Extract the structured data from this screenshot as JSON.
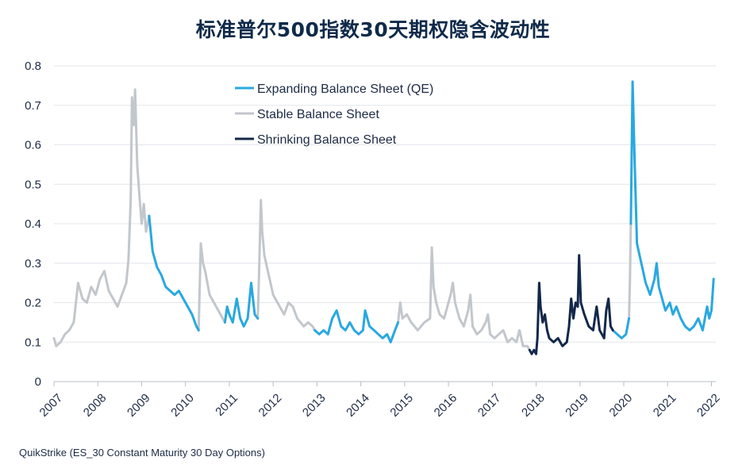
{
  "chart_data": {
    "type": "line",
    "title": "标准普尔500指数30天期权隐含波动性",
    "source": "QuikStrike (ES_30 Constant Maturity 30 Day Options)",
    "xlabel": "",
    "ylabel": "",
    "xlim": [
      2007.0,
      2022.1
    ],
    "ylim": [
      0,
      0.8
    ],
    "y_ticks": [
      0,
      0.1,
      0.2,
      0.3,
      0.4,
      0.5,
      0.6,
      0.7,
      0.8
    ],
    "y_tick_labels": [
      "0",
      "0.1",
      "0.2",
      "0.3",
      "0.4",
      "0.5",
      "0.6",
      "0.7",
      "0.8"
    ],
    "x_ticks": [
      2007,
      2008,
      2009,
      2010,
      2011,
      2012,
      2013,
      2014,
      2015,
      2016,
      2017,
      2018,
      2019,
      2020,
      2021,
      2022
    ],
    "x_tick_labels": [
      "2007",
      "2008",
      "2009",
      "2010",
      "2011",
      "2012",
      "2013",
      "2014",
      "2015",
      "2016",
      "2017",
      "2018",
      "2019",
      "2020",
      "2021",
      "2022"
    ],
    "grid": "horizontal",
    "legend_position": "top-center",
    "series": [
      {
        "name": "Expanding Balance Sheet (QE)",
        "color": "#29a8e0",
        "segments": [
          [
            [
              2009.17,
              0.42
            ],
            [
              2009.25,
              0.33
            ],
            [
              2009.35,
              0.29
            ],
            [
              2009.45,
              0.27
            ],
            [
              2009.55,
              0.24
            ],
            [
              2009.65,
              0.23
            ],
            [
              2009.75,
              0.22
            ],
            [
              2009.85,
              0.23
            ],
            [
              2009.95,
              0.21
            ],
            [
              2010.05,
              0.19
            ],
            [
              2010.15,
              0.17
            ],
            [
              2010.25,
              0.14
            ],
            [
              2010.3,
              0.13
            ]
          ],
          [
            [
              2010.9,
              0.15
            ],
            [
              2010.95,
              0.19
            ],
            [
              2011.0,
              0.17
            ],
            [
              2011.08,
              0.15
            ],
            [
              2011.17,
              0.21
            ],
            [
              2011.25,
              0.16
            ],
            [
              2011.33,
              0.14
            ],
            [
              2011.42,
              0.16
            ],
            [
              2011.5,
              0.25
            ],
            [
              2011.58,
              0.17
            ],
            [
              2011.65,
              0.16
            ]
          ],
          [
            [
              2012.95,
              0.13
            ],
            [
              2013.05,
              0.12
            ],
            [
              2013.15,
              0.13
            ],
            [
              2013.25,
              0.12
            ],
            [
              2013.35,
              0.16
            ],
            [
              2013.45,
              0.18
            ],
            [
              2013.55,
              0.14
            ],
            [
              2013.65,
              0.13
            ],
            [
              2013.75,
              0.15
            ],
            [
              2013.85,
              0.13
            ],
            [
              2013.95,
              0.12
            ],
            [
              2014.05,
              0.13
            ],
            [
              2014.1,
              0.18
            ],
            [
              2014.2,
              0.14
            ],
            [
              2014.3,
              0.13
            ],
            [
              2014.4,
              0.12
            ],
            [
              2014.5,
              0.11
            ],
            [
              2014.6,
              0.12
            ],
            [
              2014.68,
              0.1
            ],
            [
              2014.78,
              0.13
            ],
            [
              2014.85,
              0.15
            ]
          ],
          [
            [
              2019.75,
              0.13
            ],
            [
              2019.85,
              0.12
            ],
            [
              2019.95,
              0.11
            ],
            [
              2020.05,
              0.12
            ],
            [
              2020.12,
              0.16
            ]
          ],
          [
            [
              2020.16,
              0.4
            ],
            [
              2020.2,
              0.76
            ],
            [
              2020.25,
              0.55
            ],
            [
              2020.3,
              0.35
            ],
            [
              2020.4,
              0.3
            ],
            [
              2020.5,
              0.25
            ],
            [
              2020.6,
              0.22
            ],
            [
              2020.7,
              0.26
            ],
            [
              2020.75,
              0.3
            ],
            [
              2020.8,
              0.24
            ],
            [
              2020.85,
              0.22
            ],
            [
              2020.9,
              0.2
            ],
            [
              2020.95,
              0.18
            ],
            [
              2021.05,
              0.2
            ],
            [
              2021.12,
              0.17
            ],
            [
              2021.2,
              0.19
            ],
            [
              2021.3,
              0.16
            ],
            [
              2021.4,
              0.14
            ],
            [
              2021.5,
              0.13
            ],
            [
              2021.6,
              0.14
            ],
            [
              2021.7,
              0.16
            ],
            [
              2021.8,
              0.13
            ],
            [
              2021.9,
              0.19
            ],
            [
              2021.95,
              0.16
            ],
            [
              2022.0,
              0.18
            ],
            [
              2022.05,
              0.26
            ]
          ]
        ]
      },
      {
        "name": "Stable Balance Sheet",
        "color": "#c2c7cc",
        "segments": [
          [
            [
              2007.0,
              0.11
            ],
            [
              2007.05,
              0.09
            ],
            [
              2007.15,
              0.1
            ],
            [
              2007.25,
              0.12
            ],
            [
              2007.35,
              0.13
            ],
            [
              2007.45,
              0.15
            ],
            [
              2007.55,
              0.25
            ],
            [
              2007.65,
              0.21
            ],
            [
              2007.75,
              0.2
            ],
            [
              2007.85,
              0.24
            ],
            [
              2007.95,
              0.22
            ],
            [
              2008.05,
              0.26
            ],
            [
              2008.15,
              0.28
            ],
            [
              2008.25,
              0.23
            ],
            [
              2008.35,
              0.21
            ],
            [
              2008.45,
              0.19
            ],
            [
              2008.55,
              0.22
            ],
            [
              2008.65,
              0.25
            ],
            [
              2008.7,
              0.31
            ],
            [
              2008.75,
              0.46
            ],
            [
              2008.78,
              0.72
            ],
            [
              2008.82,
              0.65
            ],
            [
              2008.85,
              0.74
            ],
            [
              2008.9,
              0.55
            ],
            [
              2008.95,
              0.47
            ],
            [
              2009.0,
              0.4
            ],
            [
              2009.05,
              0.45
            ],
            [
              2009.1,
              0.38
            ],
            [
              2009.17,
              0.42
            ]
          ],
          [
            [
              2010.3,
              0.13
            ],
            [
              2010.35,
              0.35
            ],
            [
              2010.4,
              0.3
            ],
            [
              2010.45,
              0.28
            ],
            [
              2010.55,
              0.22
            ],
            [
              2010.65,
              0.2
            ],
            [
              2010.75,
              0.18
            ],
            [
              2010.85,
              0.16
            ],
            [
              2010.9,
              0.15
            ]
          ],
          [
            [
              2011.65,
              0.16
            ],
            [
              2011.68,
              0.28
            ],
            [
              2011.72,
              0.46
            ],
            [
              2011.75,
              0.38
            ],
            [
              2011.8,
              0.32
            ],
            [
              2011.9,
              0.27
            ],
            [
              2012.0,
              0.22
            ],
            [
              2012.1,
              0.2
            ],
            [
              2012.25,
              0.17
            ],
            [
              2012.35,
              0.2
            ],
            [
              2012.45,
              0.19
            ],
            [
              2012.55,
              0.16
            ],
            [
              2012.7,
              0.14
            ],
            [
              2012.8,
              0.15
            ],
            [
              2012.9,
              0.14
            ],
            [
              2012.95,
              0.13
            ]
          ],
          [
            [
              2014.85,
              0.15
            ],
            [
              2014.9,
              0.2
            ],
            [
              2014.95,
              0.16
            ],
            [
              2015.05,
              0.17
            ],
            [
              2015.15,
              0.15
            ],
            [
              2015.3,
              0.13
            ],
            [
              2015.45,
              0.15
            ],
            [
              2015.58,
              0.16
            ],
            [
              2015.62,
              0.34
            ],
            [
              2015.66,
              0.24
            ],
            [
              2015.72,
              0.2
            ],
            [
              2015.8,
              0.17
            ],
            [
              2015.9,
              0.16
            ],
            [
              2016.05,
              0.22
            ],
            [
              2016.1,
              0.25
            ],
            [
              2016.15,
              0.2
            ],
            [
              2016.25,
              0.16
            ],
            [
              2016.35,
              0.14
            ],
            [
              2016.45,
              0.18
            ],
            [
              2016.5,
              0.22
            ],
            [
              2016.55,
              0.14
            ],
            [
              2016.65,
              0.12
            ],
            [
              2016.75,
              0.13
            ],
            [
              2016.85,
              0.15
            ],
            [
              2016.9,
              0.17
            ],
            [
              2016.95,
              0.12
            ],
            [
              2017.05,
              0.11
            ],
            [
              2017.15,
              0.12
            ],
            [
              2017.25,
              0.13
            ],
            [
              2017.35,
              0.1
            ],
            [
              2017.45,
              0.11
            ],
            [
              2017.55,
              0.1
            ],
            [
              2017.62,
              0.13
            ],
            [
              2017.7,
              0.09
            ],
            [
              2017.8,
              0.09
            ],
            [
              2017.85,
              0.08
            ]
          ],
          [
            [
              2020.12,
              0.16
            ],
            [
              2020.14,
              0.25
            ],
            [
              2020.16,
              0.4
            ]
          ]
        ]
      },
      {
        "name": "Shrinking Balance Sheet",
        "color": "#13284a",
        "segments": [
          [
            [
              2017.85,
              0.08
            ],
            [
              2017.9,
              0.07
            ],
            [
              2017.95,
              0.08
            ],
            [
              2018.0,
              0.07
            ],
            [
              2018.03,
              0.11
            ],
            [
              2018.07,
              0.25
            ],
            [
              2018.1,
              0.19
            ],
            [
              2018.15,
              0.15
            ],
            [
              2018.2,
              0.17
            ],
            [
              2018.25,
              0.13
            ],
            [
              2018.3,
              0.11
            ],
            [
              2018.4,
              0.1
            ],
            [
              2018.5,
              0.11
            ],
            [
              2018.6,
              0.09
            ],
            [
              2018.7,
              0.1
            ],
            [
              2018.75,
              0.14
            ],
            [
              2018.8,
              0.21
            ],
            [
              2018.85,
              0.16
            ],
            [
              2018.9,
              0.2
            ],
            [
              2018.95,
              0.19
            ],
            [
              2018.98,
              0.32
            ],
            [
              2019.02,
              0.2
            ],
            [
              2019.1,
              0.17
            ],
            [
              2019.2,
              0.14
            ],
            [
              2019.3,
              0.13
            ],
            [
              2019.38,
              0.19
            ],
            [
              2019.45,
              0.13
            ],
            [
              2019.55,
              0.11
            ],
            [
              2019.6,
              0.18
            ],
            [
              2019.65,
              0.21
            ],
            [
              2019.7,
              0.14
            ],
            [
              2019.75,
              0.13
            ]
          ]
        ]
      }
    ]
  }
}
